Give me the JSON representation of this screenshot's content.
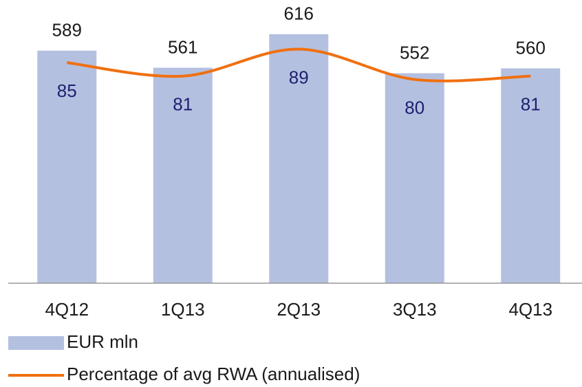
{
  "chart_data": {
    "type": "bar_line",
    "categories": [
      "4Q12",
      "1Q13",
      "2Q13",
      "3Q13",
      "4Q13"
    ],
    "series": [
      {
        "name": "EUR mln",
        "type": "bar",
        "color": "#b4c0e0",
        "values": [
          589,
          561,
          616,
          552,
          560
        ]
      },
      {
        "name": "Percentage of avg RWA (annualised)",
        "type": "line",
        "axis": "y2",
        "color": "#f07010",
        "values": [
          85,
          81,
          89,
          80,
          81
        ]
      }
    ],
    "ylim": [
      208,
      672
    ],
    "y2lim": [
      19.5,
      103.6
    ],
    "legend": "bottom-left"
  }
}
